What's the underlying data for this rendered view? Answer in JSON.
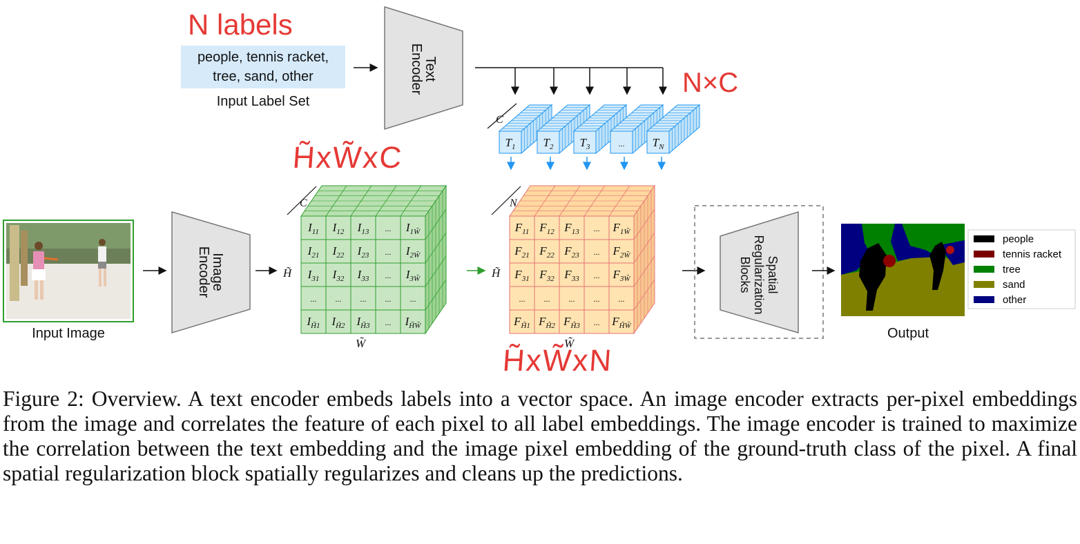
{
  "labels_block": {
    "n_labels": "N labels",
    "input_labels_line1": "people, tennis racket,",
    "input_labels_line2": "tree, sand, other",
    "input_label_set": "Input Label Set"
  },
  "encoders": {
    "text_encoder_line1": "Text",
    "text_encoder_line2": "Encoder",
    "image_encoder_line1": "Image",
    "image_encoder_line2": "Encoder",
    "spatial_line1": "Spatial",
    "spatial_line2": "Regularization",
    "spatial_line3": "Blocks"
  },
  "annotations": {
    "nxc": "N×C",
    "image_dims": "H̃xW̃xC",
    "feature_dims": "H̃xW̃xN"
  },
  "text_embeddings": [
    "T1",
    "T2",
    "T3",
    "...",
    "TN"
  ],
  "image_grid": [
    [
      "I11",
      "I12",
      "I13",
      "...",
      "I1W̃"
    ],
    [
      "I21",
      "I22",
      "I23",
      "...",
      "I2W̃"
    ],
    [
      "I31",
      "I32",
      "I33",
      "...",
      "I3W̃"
    ],
    [
      "...",
      "...",
      "...",
      "...",
      "..."
    ],
    [
      "IH̃1",
      "IH̃2",
      "IH̃3",
      "...",
      "IH̃W̃"
    ]
  ],
  "feature_grid": [
    [
      "F11",
      "F12",
      "F13",
      "...",
      "F1W̃"
    ],
    [
      "F21",
      "F22",
      "F23",
      "...",
      "F2W̃"
    ],
    [
      "F31",
      "F32",
      "F33",
      "...",
      "F3W̃"
    ],
    [
      "...",
      "...",
      "...",
      "...",
      "..."
    ],
    [
      "FH̃1",
      "FH̃2",
      "FH̃3",
      "...",
      "FH̃W̃"
    ]
  ],
  "axis_labels": {
    "c": "C",
    "n": "N",
    "h": "H̃",
    "w": "W̃"
  },
  "input_image_label": "Input Image",
  "output_label": "Output",
  "legend": [
    {
      "label": "people",
      "color": "#000000"
    },
    {
      "label": "tennis racket",
      "color": "#7a0000"
    },
    {
      "label": "tree",
      "color": "#008000"
    },
    {
      "label": "sand",
      "color": "#808000"
    },
    {
      "label": "other",
      "color": "#000080"
    }
  ],
  "caption": "Figure 2: Overview. A text encoder embeds labels into a vector space. An image encoder extracts per-pixel embeddings from the image and correlates the feature of each pixel to all label embeddings. The image encoder is trained to maximize the correlation between the text embedding and the image pixel embedding of the ground-truth class of the pixel. A final spatial regularization block spatially regularizes and cleans up the predictions."
}
